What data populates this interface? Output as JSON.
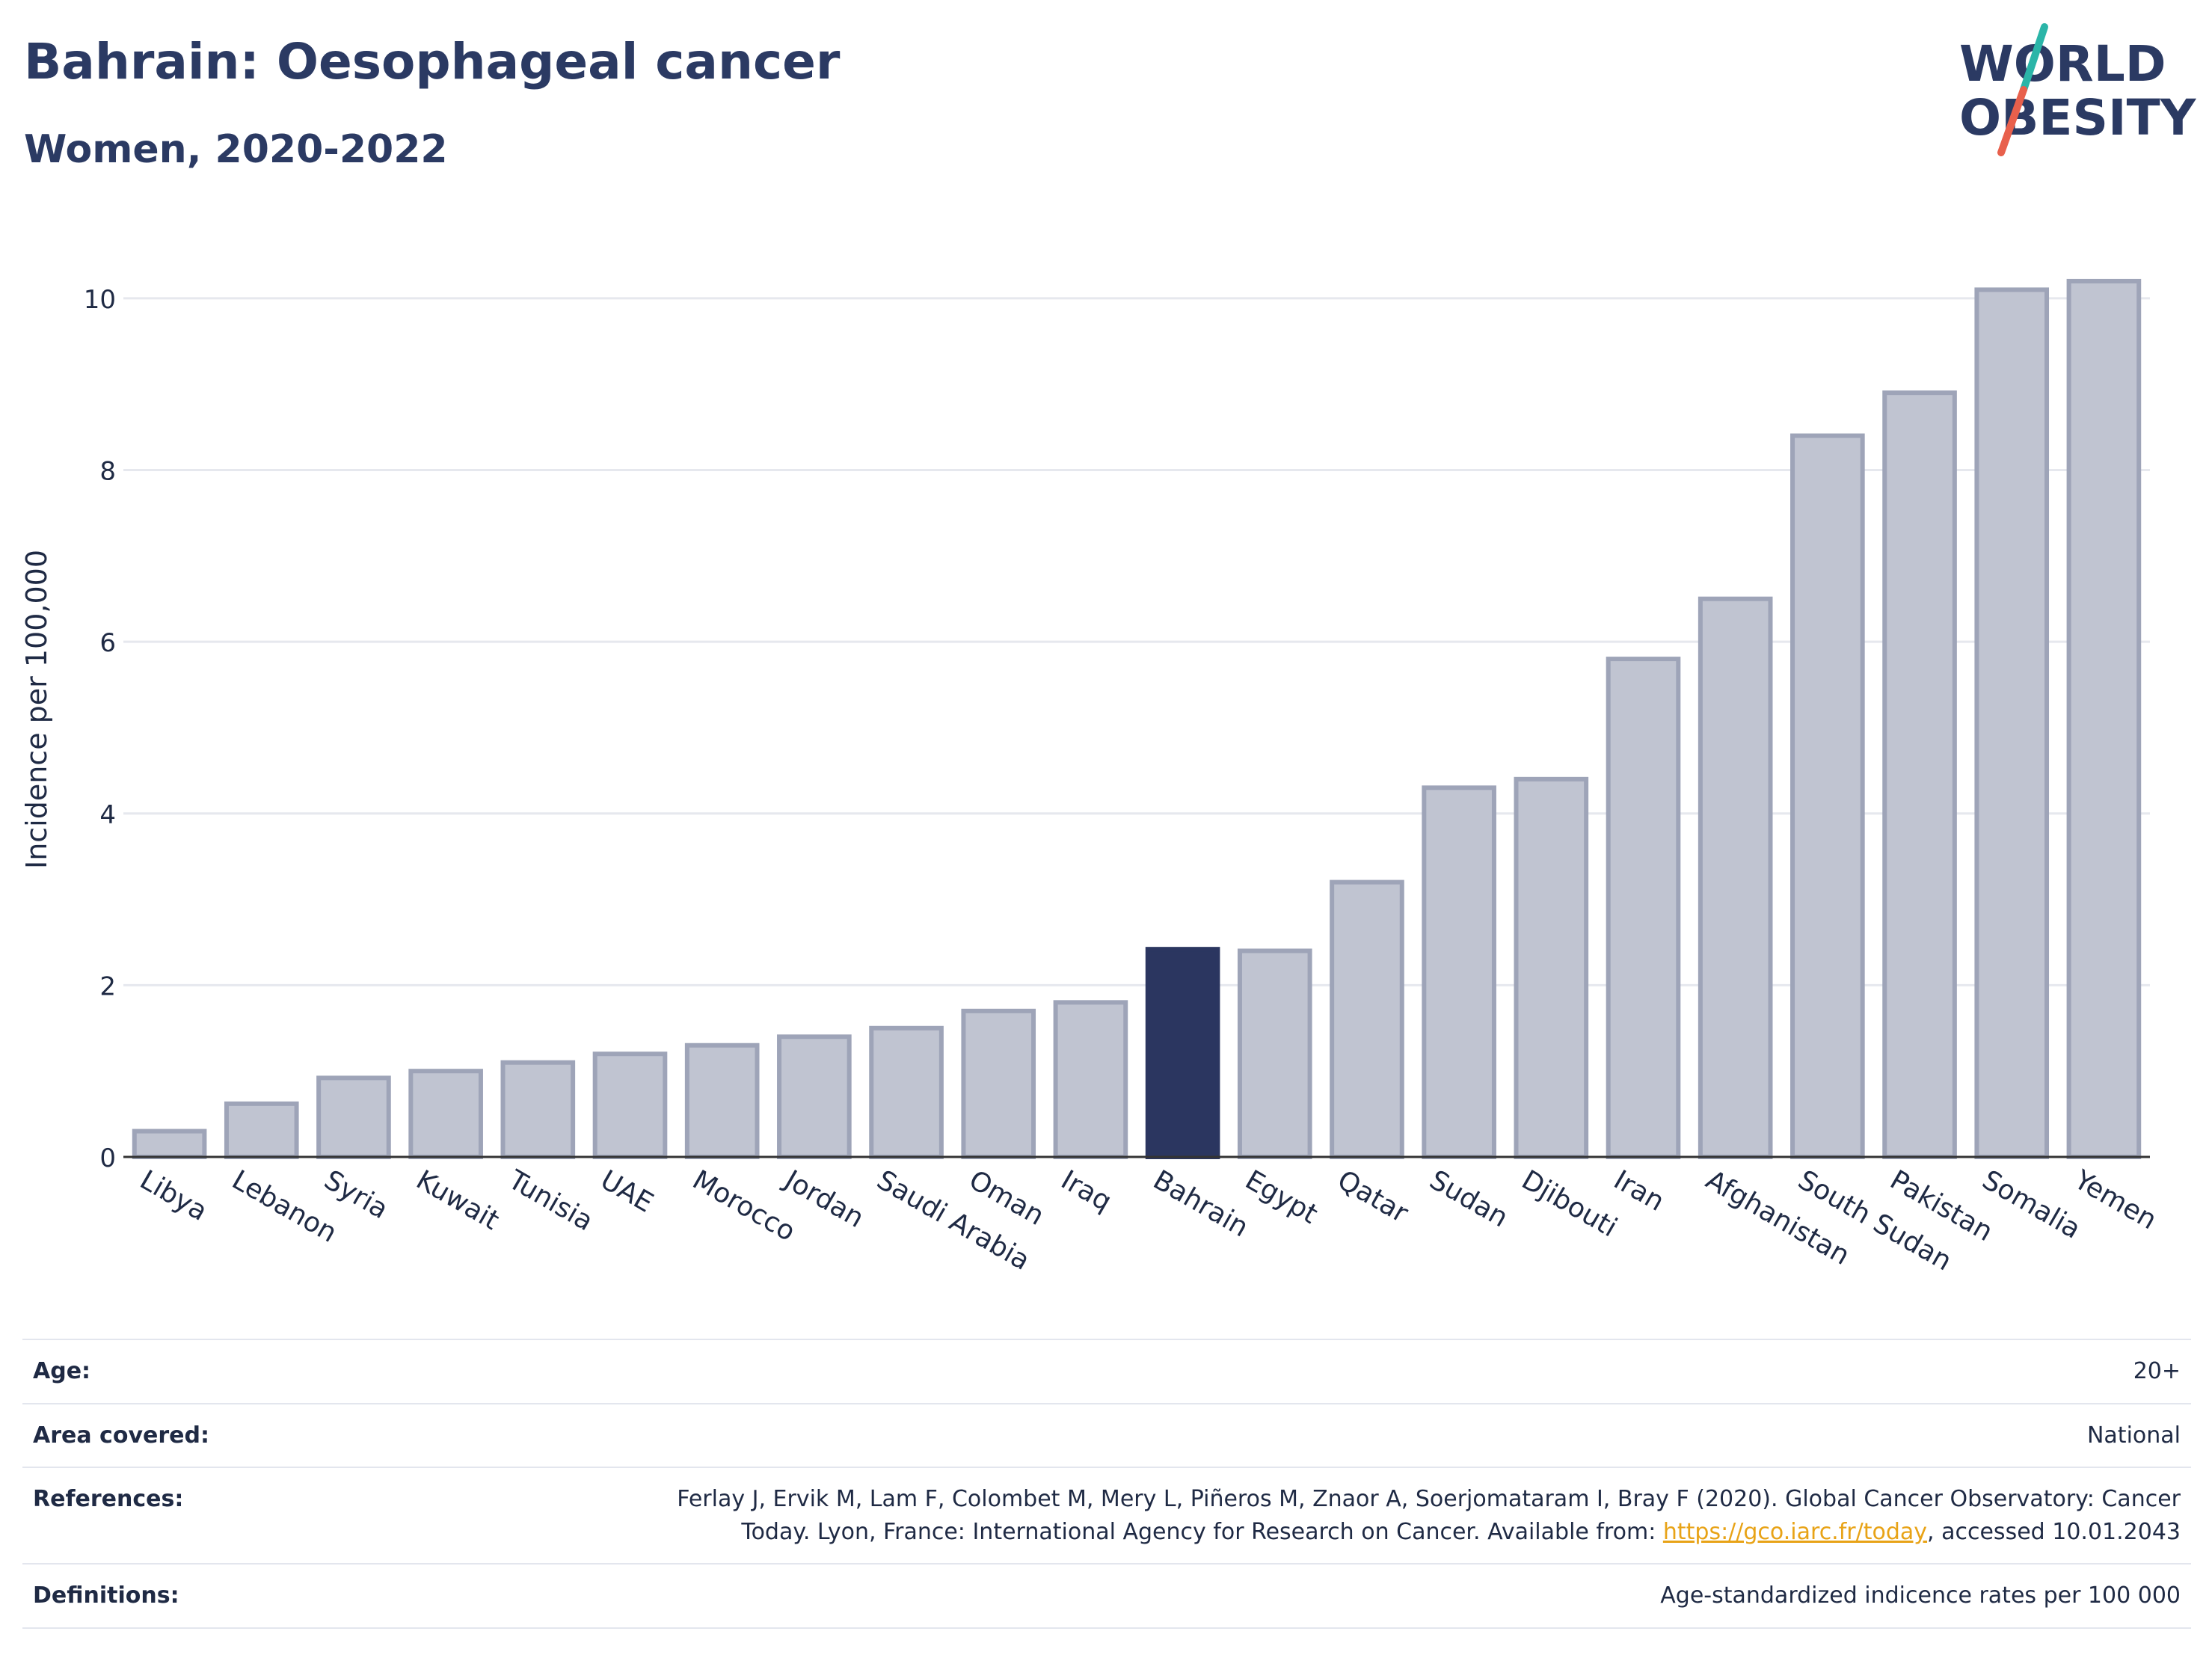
{
  "title": "Bahrain: Oesophageal cancer",
  "subtitle": "Women, 2020-2022",
  "logo": {
    "line1": "WORLD",
    "line2": "OBESITY",
    "accent_teal": "#2bb5a8",
    "accent_red": "#e8604c"
  },
  "colors": {
    "bar": "#c0c4d1",
    "bar_border": "#9ea4b8",
    "highlight": "#2b3660",
    "grid": "#e6e8ee"
  },
  "chart_data": {
    "type": "bar",
    "ylabel": "Incidence per 100,000",
    "ylim": [
      0,
      10.6
    ],
    "yticks": [
      0,
      2,
      4,
      6,
      8,
      10
    ],
    "highlight": "Bahrain",
    "categories": [
      "Libya",
      "Lebanon",
      "Syria",
      "Kuwait",
      "Tunisia",
      "UAE",
      "Morocco",
      "Jordan",
      "Saudi Arabia",
      "Oman",
      "Iraq",
      "Bahrain",
      "Egypt",
      "Qatar",
      "Sudan",
      "Djibouti",
      "Iran",
      "Afghanistan",
      "South Sudan",
      "Pakistan",
      "Somalia",
      "Yemen"
    ],
    "values": [
      0.3,
      0.62,
      0.92,
      1.0,
      1.1,
      1.2,
      1.3,
      1.4,
      1.5,
      1.7,
      1.8,
      2.42,
      2.4,
      3.2,
      4.3,
      4.4,
      5.8,
      6.5,
      8.4,
      8.9,
      10.1,
      10.2
    ]
  },
  "meta": {
    "age_label": "Age:",
    "age_value": "20+",
    "area_label": "Area covered:",
    "area_value": "National",
    "refs_label": "References:",
    "refs_text1": "Ferlay J, Ervik M, Lam F, Colombet M, Mery L, Piñeros M, Znaor A, Soerjomataram I, Bray F (2020). Global Cancer Observatory: Cancer",
    "refs_text2": "Today. Lyon, France: International Agency for Research on Cancer. Available from: ",
    "refs_link": "https://gco.iarc.fr/today",
    "refs_text3": ", accessed 10.01.2043",
    "defs_label": "Definitions:",
    "defs_value": "Age-standardized indicence rates per 100 000"
  }
}
